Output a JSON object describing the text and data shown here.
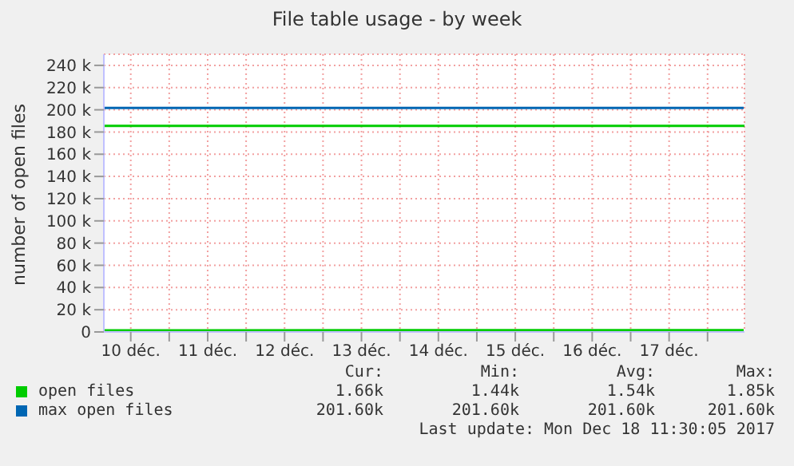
{
  "chart_data": {
    "type": "line",
    "title": "File table usage - by week",
    "ylabel": "number of open files",
    "xlim": [
      10.15,
      18.48
    ],
    "x": [
      10.16,
      18.47
    ],
    "xticks": [
      {
        "value": 10.5,
        "label": "10 déc."
      },
      {
        "value": 11,
        "label": null
      },
      {
        "value": 11.5,
        "label": "11 déc."
      },
      {
        "value": 12,
        "label": null
      },
      {
        "value": 12.5,
        "label": "12 déc."
      },
      {
        "value": 13,
        "label": null
      },
      {
        "value": 13.5,
        "label": "13 déc."
      },
      {
        "value": 14,
        "label": null
      },
      {
        "value": 14.5,
        "label": "14 déc."
      },
      {
        "value": 15,
        "label": null
      },
      {
        "value": 15.5,
        "label": "15 déc."
      },
      {
        "value": 16,
        "label": null
      },
      {
        "value": 16.5,
        "label": "16 déc."
      },
      {
        "value": 17,
        "label": null
      },
      {
        "value": 17.5,
        "label": "17 déc."
      },
      {
        "value": 18,
        "label": null
      }
    ],
    "ylim": [
      0,
      250000
    ],
    "yticks": [
      {
        "value": 0,
        "label": "0"
      },
      {
        "value": 20000,
        "label": "20 k"
      },
      {
        "value": 40000,
        "label": "40 k"
      },
      {
        "value": 60000,
        "label": "60 k"
      },
      {
        "value": 80000,
        "label": "80 k"
      },
      {
        "value": 100000,
        "label": "100 k"
      },
      {
        "value": 120000,
        "label": "120 k"
      },
      {
        "value": 140000,
        "label": "140 k"
      },
      {
        "value": 160000,
        "label": "160 k"
      },
      {
        "value": 180000,
        "label": "180 k"
      },
      {
        "value": 200000,
        "label": "200 k"
      },
      {
        "value": 220000,
        "label": "220 k"
      },
      {
        "value": 240000,
        "label": "240 k"
      }
    ],
    "grid": true,
    "legend": "bottom",
    "marker": "none",
    "line_style": "solid",
    "ref_lines": [
      {
        "axis": "y",
        "value": 185500,
        "color": "#00cc00"
      }
    ],
    "series": [
      {
        "name": "open files",
        "color": "#00cc00",
        "values": [
          1500,
          1660
        ]
      },
      {
        "name": "max open files",
        "color": "#0066b3",
        "values": [
          201600,
          201600
        ]
      }
    ],
    "annotations": [
      "Cur:",
      "Min:",
      "Avg:",
      "Max:",
      "1.66k",
      "1.44k",
      "1.54k",
      "1.85k",
      "201.60k",
      "201.60k",
      "201.60k",
      "201.60k",
      "Last update:  Mon Dec 18 11:30:05 2017"
    ]
  }
}
